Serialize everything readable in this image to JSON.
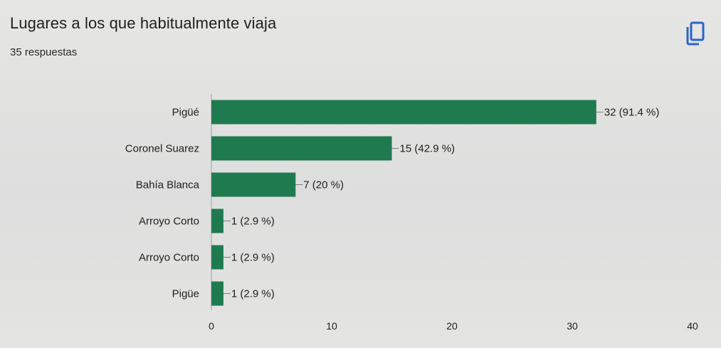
{
  "header": {
    "title": "Lugares a los que habitualmente viaja",
    "responses": "35 respuestas",
    "copy_icon": "copy-icon"
  },
  "colors": {
    "bar": "#1f7a50",
    "text": "#202020",
    "axis": "#b5b5b5",
    "icon": "#2b63c9"
  },
  "chart_data": {
    "type": "bar",
    "orientation": "horizontal",
    "title": "Lugares a los que habitualmente viaja",
    "categories": [
      "Pigüé",
      "Coronel Suarez",
      "Bahía Blanca",
      "Arroyo Corto",
      "Arroyo Corto",
      "Pigüe"
    ],
    "values": [
      32,
      15,
      7,
      1,
      1,
      1
    ],
    "data_labels": [
      "32 (91.4 %)",
      "15 (42.9 %)",
      "7 (20 %)",
      "1 (2.9 %)",
      "1 (2.9 %)",
      "1 (2.9 %)"
    ],
    "xlim": [
      0,
      40
    ],
    "xticks": [
      "0",
      "10",
      "20",
      "30",
      "40"
    ],
    "grid": false
  }
}
